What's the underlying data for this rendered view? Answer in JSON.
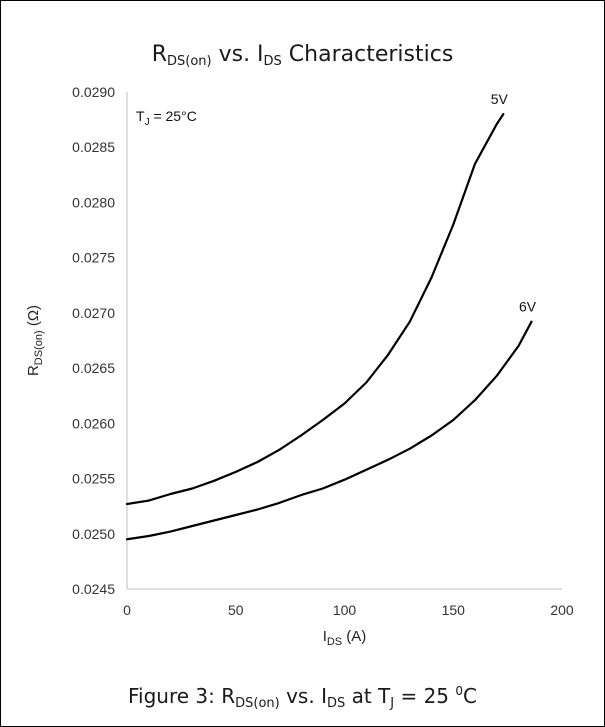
{
  "chart_data": {
    "type": "line",
    "title": {
      "main_a": "R",
      "main_sub_a": "DS(on)",
      "main_b": " vs. I",
      "main_sub_b": "DS",
      "main_c": " Characteristics"
    },
    "xlabel": {
      "main": "I",
      "sub": "DS",
      "tail": " (A)"
    },
    "ylabel": {
      "main": "R",
      "sub": "DS(on)",
      "tail": " (Ω)"
    },
    "xlim": [
      0,
      200
    ],
    "ylim": [
      0.0245,
      0.029
    ],
    "x_ticks": [
      "0",
      "50",
      "100",
      "150",
      "200"
    ],
    "y_ticks": [
      "0.0245",
      "0.0250",
      "0.0255",
      "0.0260",
      "0.0265",
      "0.0270",
      "0.0275",
      "0.0280",
      "0.0285",
      "0.0290"
    ],
    "annotation": {
      "main": "T",
      "sub": "J",
      "tail": " = 25°C"
    },
    "series": [
      {
        "name": "5V",
        "x": [
          0,
          10,
          20,
          30,
          40,
          50,
          60,
          70,
          80,
          90,
          100,
          110,
          120,
          130,
          140,
          150,
          160,
          170,
          173
        ],
        "y": [
          0.02527,
          0.0253,
          0.02536,
          0.02541,
          0.02548,
          0.02556,
          0.02565,
          0.02576,
          0.02589,
          0.02603,
          0.02618,
          0.02637,
          0.02662,
          0.02692,
          0.02732,
          0.0278,
          0.02835,
          0.02871,
          0.0288
        ]
      },
      {
        "name": "6V",
        "x": [
          0,
          10,
          20,
          30,
          40,
          50,
          60,
          70,
          80,
          90,
          100,
          110,
          120,
          130,
          140,
          150,
          160,
          170,
          180,
          186
        ],
        "y": [
          0.02495,
          0.02498,
          0.02502,
          0.02507,
          0.02512,
          0.02517,
          0.02522,
          0.02528,
          0.02535,
          0.02541,
          0.02549,
          0.02558,
          0.02567,
          0.02577,
          0.02589,
          0.02603,
          0.02621,
          0.02643,
          0.0267,
          0.02692
        ]
      }
    ],
    "grid": false,
    "legend": "none (series labeled at curve ends)"
  },
  "caption": {
    "a": "Figure 3: R",
    "sub_a": "DS(on)",
    "b": " vs. I",
    "sub_b": "DS",
    "c": "  at T",
    "sub_c": "J",
    "d": " = 25 ",
    "sup": "0",
    "e": "C"
  }
}
